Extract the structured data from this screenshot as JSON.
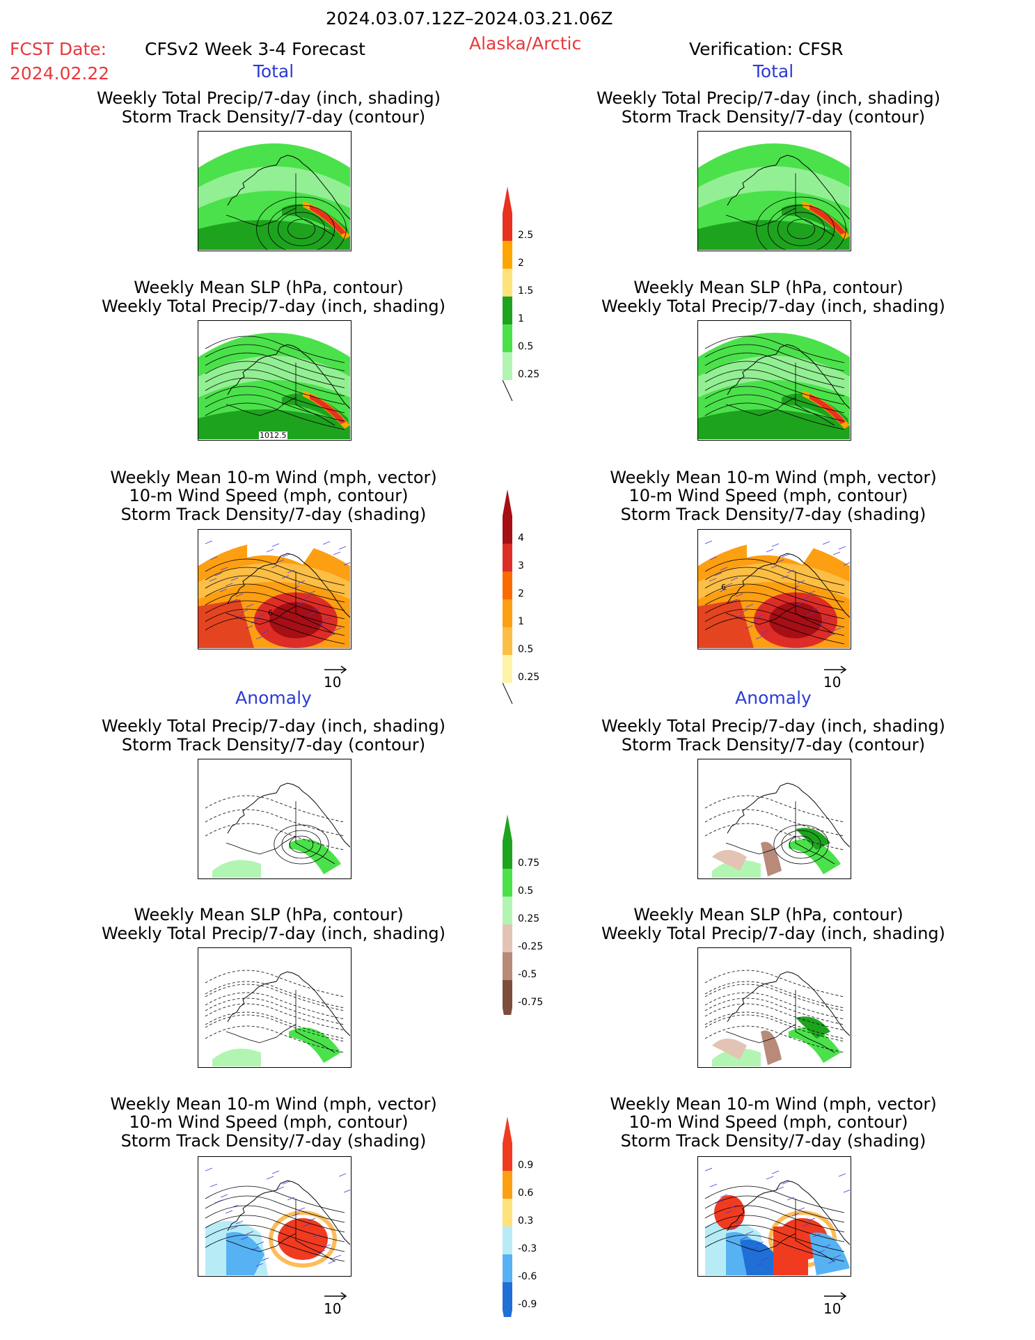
{
  "header": {
    "date_range": "2024.03.07.12Z–2024.03.21.06Z",
    "fcst_label": "FCST Date:",
    "fcst_date": "2024.02.22",
    "forecast_title": "CFSv2 Week 3-4 Forecast",
    "region": "Alaska/Arctic",
    "verification": "Verification: CFSR"
  },
  "sections": {
    "total_left": "Total",
    "total_right": "Total",
    "anomaly_left": "Anomaly",
    "anomaly_right": "Anomaly"
  },
  "titles": {
    "precip_storm": [
      "Weekly Total Precip/7-day (inch, shading)",
      "Storm Track Density/7-day (contour)"
    ],
    "slp_precip": [
      "Weekly Mean SLP (hPa, contour)",
      "Weekly Total Precip/7-day (inch, shading)"
    ],
    "wind_storm": [
      "Weekly Mean 10-m Wind (mph, vector)",
      "10-m Wind Speed (mph, contour)",
      "Storm Track Density/7-day (shading)"
    ]
  },
  "annotations": {
    "slp_contour_label": "1012.5",
    "wind_contour_label": "6",
    "vector_ref": "10"
  },
  "colorbars": {
    "precip_total": {
      "labels": [
        "2.5",
        "2",
        "1.5",
        "1",
        "0.5",
        "0.25"
      ],
      "colors": [
        "#e8311e",
        "#ffa500",
        "#ffe27a",
        "#1ea31e",
        "#4be14b",
        "#b2f5b2"
      ]
    },
    "storm_total": {
      "labels": [
        "4",
        "3",
        "2",
        "1",
        "0.5",
        "0.25"
      ],
      "colors": [
        "#a50f15",
        "#de2d26",
        "#fb6a00",
        "#fd9f12",
        "#fdbe45",
        "#fff3a8"
      ]
    },
    "precip_anom": {
      "labels": [
        "0.75",
        "0.5",
        "0.25",
        "-0.25",
        "-0.5",
        "-0.75"
      ],
      "colors": [
        "#1ea31e",
        "#4be14b",
        "#b2f5b2",
        "#e3c4b4",
        "#b88a7a",
        "#7d4e3c"
      ]
    },
    "storm_anom": {
      "labels": [
        "0.9",
        "0.6",
        "0.3",
        "-0.3",
        "-0.6",
        "-0.9"
      ],
      "colors": [
        "#f03b20",
        "#fd9f12",
        "#ffe27a",
        "#b7ecf7",
        "#56b2f2",
        "#1f6fd6"
      ]
    }
  }
}
